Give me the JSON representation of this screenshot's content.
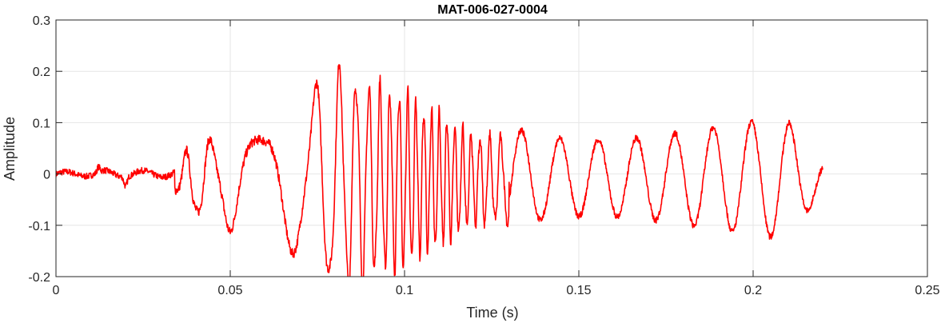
{
  "chart_data": {
    "type": "line",
    "title": "MAT-006-027-0004",
    "xlabel": "Time (s)",
    "ylabel": "Amplitude",
    "xlim": [
      0,
      0.25
    ],
    "ylim": [
      -0.2,
      0.3
    ],
    "x_ticks": [
      0,
      0.05,
      0.1,
      0.15,
      0.2,
      0.25
    ],
    "x_tick_labels": [
      "0",
      "0.05",
      "0.1",
      "0.15",
      "0.2",
      "0.25"
    ],
    "y_ticks": [
      -0.2,
      -0.1,
      0,
      0.1,
      0.2,
      0.3
    ],
    "y_tick_labels": [
      "-0.2",
      "-0.1",
      "0",
      "0.1",
      "0.2",
      "0.3"
    ],
    "grid": true,
    "series_color": "#ff0000",
    "series": [
      {
        "x_start": 0,
        "x_end": 0.22,
        "envelope": {
          "t": [
            0,
            0.011,
            0.012,
            0.013,
            0.019,
            0.02,
            0.021,
            0.033,
            0.036,
            0.04,
            0.045,
            0.05,
            0.055,
            0.06,
            0.065,
            0.07,
            0.075,
            0.08,
            0.082,
            0.085,
            0.09,
            0.095,
            0.1,
            0.105,
            0.11,
            0.115,
            0.12,
            0.125,
            0.13,
            0.135,
            0.14,
            0.15,
            0.16,
            0.17,
            0.18,
            0.19,
            0.2,
            0.205,
            0.21,
            0.215,
            0.22
          ],
          "amplitude": [
            0.007,
            0.008,
            0.045,
            0.012,
            0.01,
            0.045,
            0.012,
            0.01,
            0.055,
            0.085,
            0.095,
            0.115,
            0.11,
            0.115,
            0.16,
            0.165,
            0.225,
            0.255,
            0.26,
            0.245,
            0.225,
            0.215,
            0.21,
            0.175,
            0.155,
            0.13,
            0.105,
            0.1,
            0.1,
            0.09,
            0.08,
            0.075,
            0.075,
            0.08,
            0.09,
            0.1,
            0.11,
            0.115,
            0.11,
            0.07,
            0.03
          ]
        }
      }
    ]
  }
}
